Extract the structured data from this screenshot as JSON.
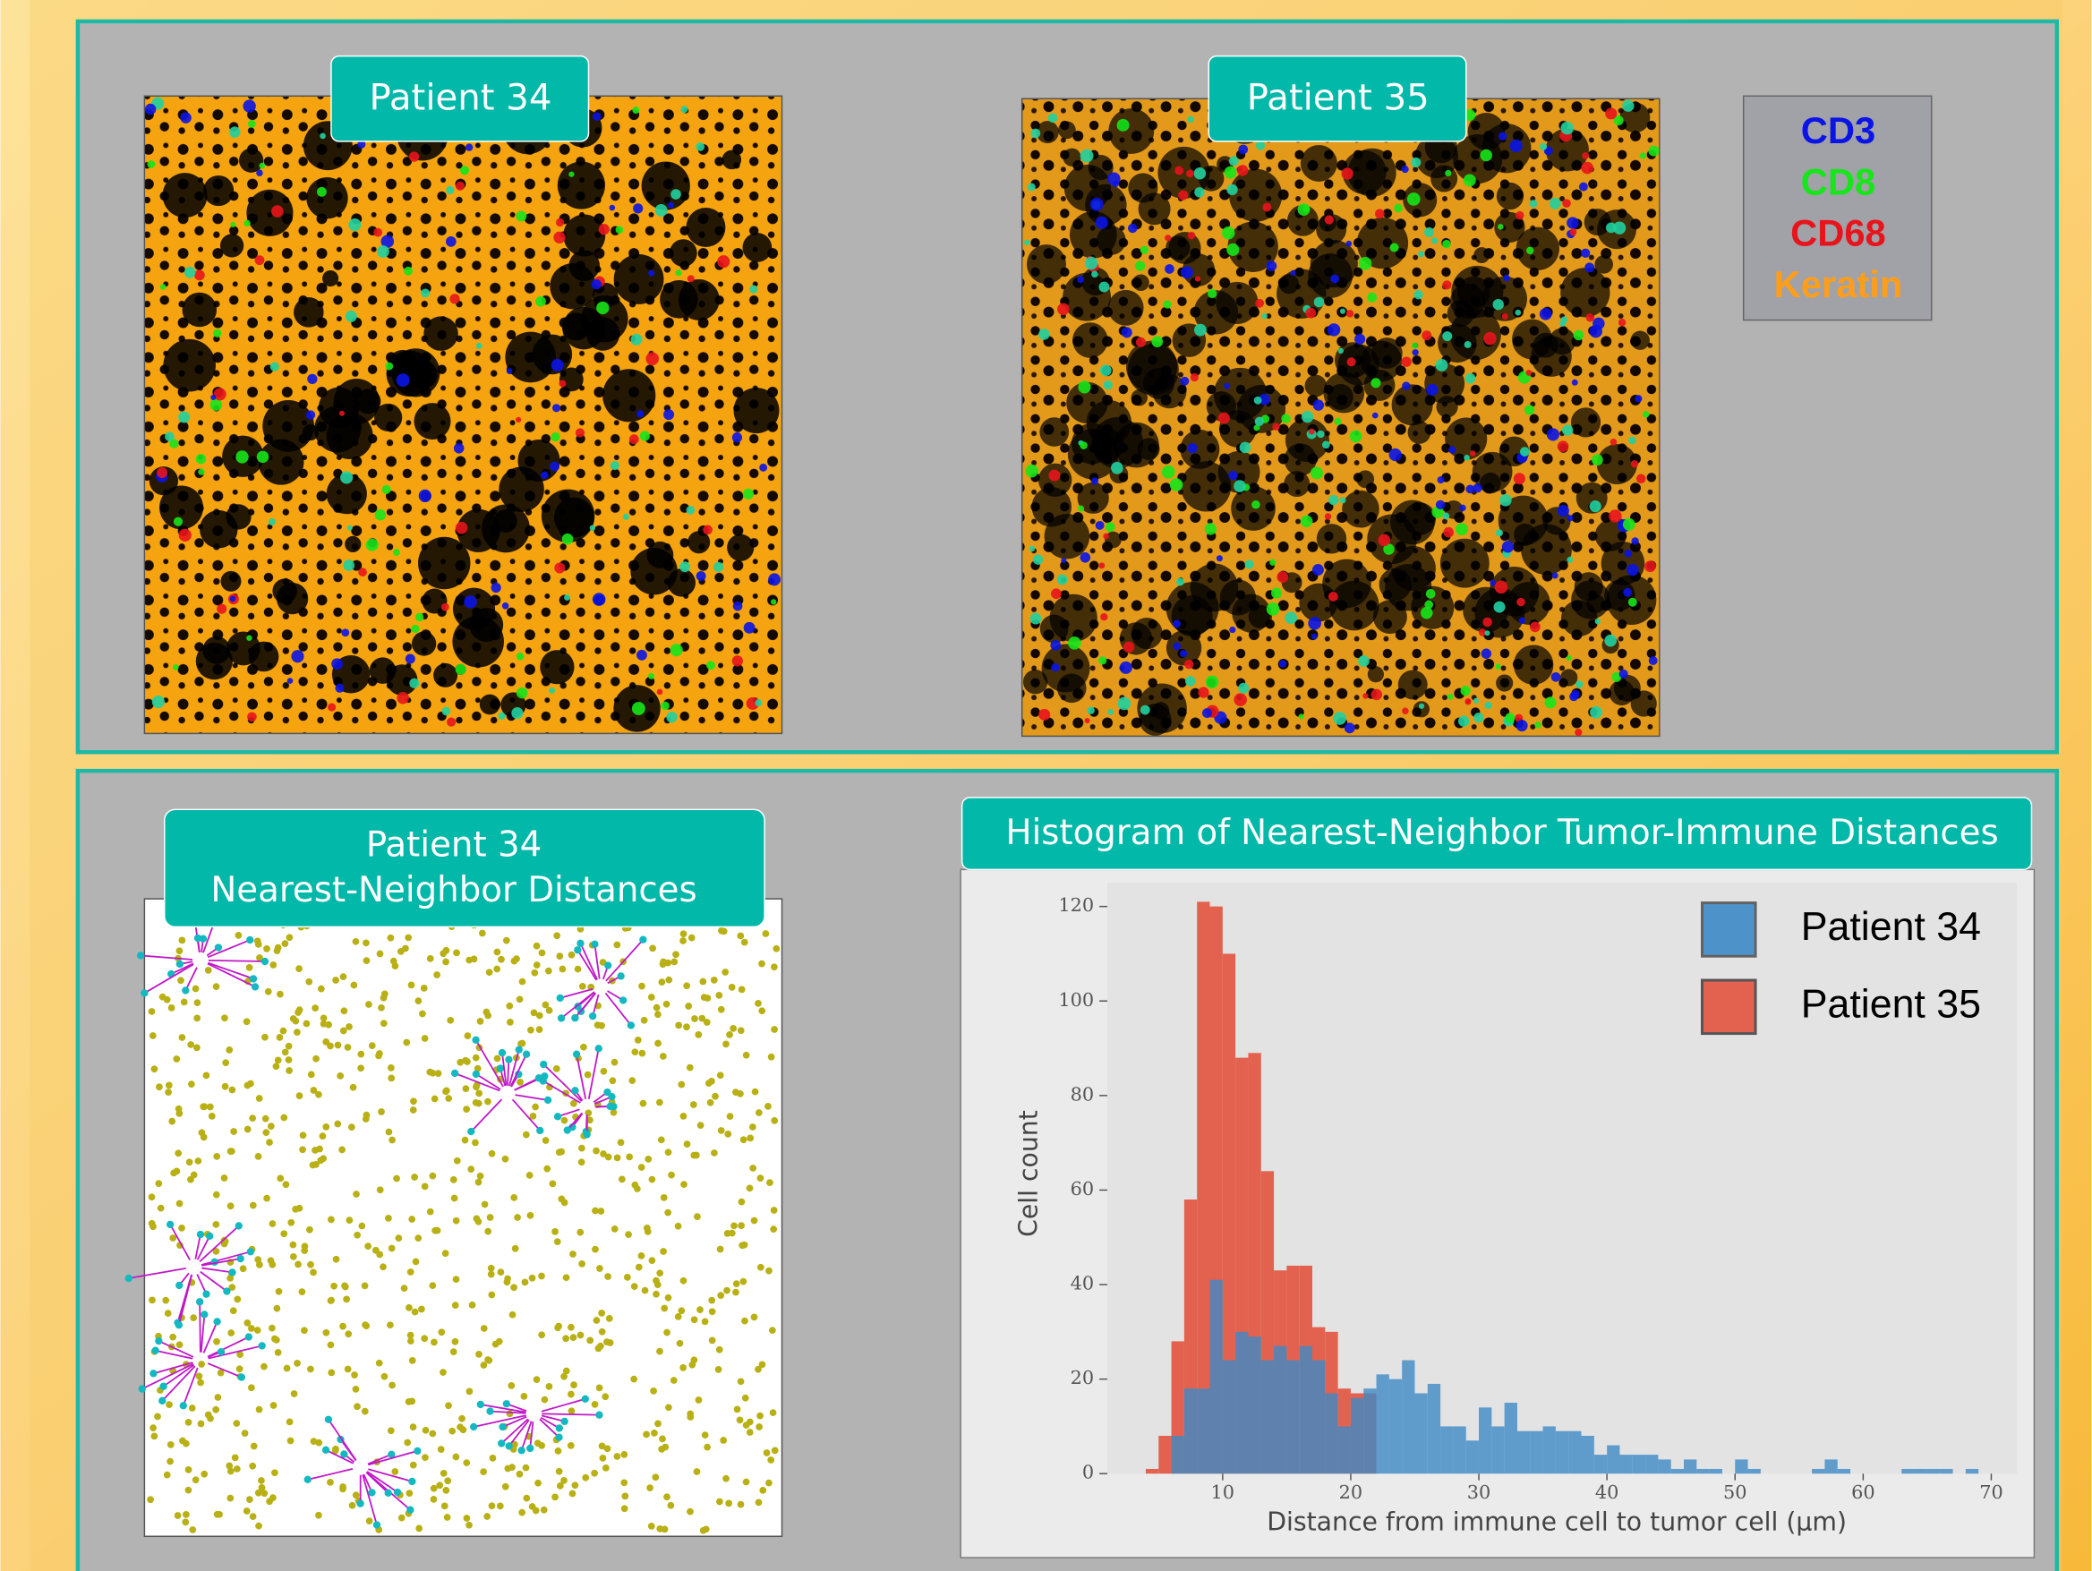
{
  "images": [
    {
      "label": "Patient 34"
    },
    {
      "label": "Patient 35"
    },
    {
      "label_lines": [
        "Patient 34",
        "Nearest-Neighbor Distances"
      ]
    }
  ],
  "marker_legend": [
    {
      "label": "CD3",
      "color": "#0a14e6"
    },
    {
      "label": "CD8",
      "color": "#16e61a"
    },
    {
      "label": "CD68",
      "color": "#e8141c"
    },
    {
      "label": "Keratin",
      "color": "#ff9e1a"
    }
  ],
  "chart_data": {
    "type": "histogram",
    "title": "Histogram of Nearest-Neighbor Tumor-Immune Distances",
    "xlabel": "Distance from immune cell to tumor cell (μm)",
    "ylabel": "Cell count",
    "bins": [
      4,
      5,
      6,
      7,
      8,
      9,
      10,
      11,
      12,
      13,
      14,
      15,
      16,
      17,
      18,
      19,
      20,
      21,
      22,
      23,
      24,
      25,
      26,
      27,
      28,
      29,
      30,
      31,
      32,
      33,
      34,
      35,
      36,
      37,
      38,
      39,
      40,
      41,
      42,
      43,
      44,
      45,
      46,
      47,
      48,
      49,
      50,
      51,
      52,
      53,
      54,
      55,
      56,
      57,
      58,
      59,
      60,
      61,
      62,
      63,
      64,
      65,
      66,
      67,
      68,
      69,
      70
    ],
    "series": [
      {
        "name": "Patient 35",
        "color": "#e2624f",
        "values": [
          1,
          8,
          28,
          58,
          121,
          120,
          110,
          88,
          89,
          64,
          43,
          44,
          44,
          31,
          30,
          18,
          17,
          17,
          0,
          0,
          0,
          0,
          0,
          0,
          0,
          0,
          0,
          0,
          0,
          0,
          0,
          0,
          0,
          0,
          0,
          0,
          0,
          0,
          0,
          0,
          0,
          0,
          0,
          0,
          0,
          0,
          0,
          0,
          0,
          0,
          0,
          0,
          0,
          0,
          0,
          0,
          0,
          0,
          0,
          0,
          0,
          0,
          0,
          0,
          0,
          0
        ]
      },
      {
        "name": "Patient 34",
        "color": "#3d8ac6",
        "values": [
          0,
          0,
          8,
          18,
          18,
          41,
          24,
          30,
          29,
          24,
          27,
          24,
          27,
          24,
          17,
          10,
          16,
          18,
          21,
          20,
          24,
          17,
          19,
          10,
          10,
          7,
          14,
          10,
          15,
          9,
          9,
          10,
          9,
          9,
          8,
          4,
          6,
          4,
          4,
          4,
          3,
          1,
          3,
          1,
          1,
          0,
          3,
          1,
          0,
          0,
          0,
          0,
          1,
          3,
          1,
          0,
          0,
          0,
          0,
          1,
          1,
          1,
          1,
          0,
          1,
          0
        ]
      }
    ],
    "legend_order": [
      "Patient 34",
      "Patient 35"
    ],
    "xlim": [
      1,
      72
    ],
    "ylim": [
      0,
      125
    ],
    "xticks": [
      10,
      20,
      30,
      40,
      50,
      60,
      70
    ],
    "yticks": [
      0,
      20,
      40,
      60,
      80,
      100,
      120
    ],
    "grid": false,
    "legend": "upper right"
  }
}
